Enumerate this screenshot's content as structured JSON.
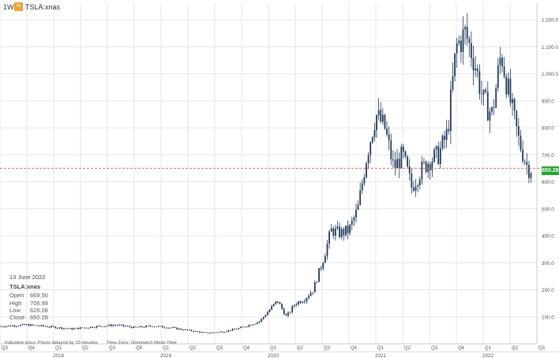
{
  "header": {
    "interval": "1W",
    "badge": "IN",
    "symbol": "TSLA:xnas"
  },
  "ohlc_box": {
    "date": "13 June 2022",
    "symbol": "TSLA:xnas",
    "rows": [
      {
        "label": "Open",
        "value": "669.50"
      },
      {
        "label": "High",
        "value": "706.99"
      },
      {
        "label": "Low",
        "value": "626.08"
      },
      {
        "label": "Close",
        "value": "650.28"
      }
    ]
  },
  "disclaimer": {
    "delay": "Indicative price. Prices delayed by 15 minutes",
    "timezone": "Time Zone: Greenwich Mean Time"
  },
  "price_label": "650.28",
  "colors": {
    "candle": "#1f3a5c",
    "grid": "#e6e6e6",
    "last_price_line": "#e0704a",
    "price_badge": "#26a431"
  },
  "chart_data": {
    "type": "candlestick",
    "title": "",
    "xlabel": "",
    "ylabel": "",
    "ylim": [
      0,
      1250
    ],
    "y_ticks": [
      "100.0",
      "200.0",
      "300.0",
      "400.0",
      "500.0",
      "600.0",
      "700.0",
      "800.0",
      "900.0",
      "1,000.0",
      "1,100.0",
      "1,200.0"
    ],
    "quarter_ticks": [
      "Q3",
      "Q4",
      "Q1",
      "Q2",
      "Q3",
      "Q4",
      "Q1",
      "Q2",
      "Q3",
      "Q4",
      "Q1",
      "Q2",
      "Q3",
      "Q4",
      "Q1",
      "Q2",
      "Q3",
      "Q4",
      "Q1",
      "Q2",
      "Q3"
    ],
    "year_ticks": [
      "2017",
      "2018",
      "2019",
      "2020",
      "2021",
      "2022"
    ],
    "last_price": 650.28,
    "grid": true,
    "x_start": "2017-07",
    "x_end": "2022-07",
    "close_anchors": [
      [
        "2017-07",
        65
      ],
      [
        "2017-10",
        70
      ],
      [
        "2017-12",
        65
      ],
      [
        "2018-03",
        55
      ],
      [
        "2018-06",
        65
      ],
      [
        "2018-08",
        70
      ],
      [
        "2018-10",
        60
      ],
      [
        "2018-12",
        66
      ],
      [
        "2019-02",
        60
      ],
      [
        "2019-04",
        50
      ],
      [
        "2019-06",
        40
      ],
      [
        "2019-08",
        45
      ],
      [
        "2019-10",
        60
      ],
      [
        "2019-12",
        83
      ],
      [
        "2020-02",
        160
      ],
      [
        "2020-03",
        100
      ],
      [
        "2020-04",
        150
      ],
      [
        "2020-05",
        165
      ],
      [
        "2020-06",
        200
      ],
      [
        "2020-07",
        300
      ],
      [
        "2020-08",
        420
      ],
      [
        "2020-09",
        410
      ],
      [
        "2020-10",
        420
      ],
      [
        "2020-11",
        500
      ],
      [
        "2020-12",
        700
      ],
      [
        "2021-01",
        850
      ],
      [
        "2021-02",
        800
      ],
      [
        "2021-03",
        650
      ],
      [
        "2021-04",
        700
      ],
      [
        "2021-05",
        580
      ],
      [
        "2021-06",
        640
      ],
      [
        "2021-07",
        680
      ],
      [
        "2021-08",
        700
      ],
      [
        "2021-09",
        780
      ],
      [
        "2021-10",
        1100
      ],
      [
        "2021-11",
        1150
      ],
      [
        "2021-12",
        1050
      ],
      [
        "2022-01",
        900
      ],
      [
        "2022-02",
        850
      ],
      [
        "2022-03",
        1080
      ],
      [
        "2022-04",
        900
      ],
      [
        "2022-05",
        750
      ],
      [
        "2022-06",
        650
      ]
    ]
  }
}
